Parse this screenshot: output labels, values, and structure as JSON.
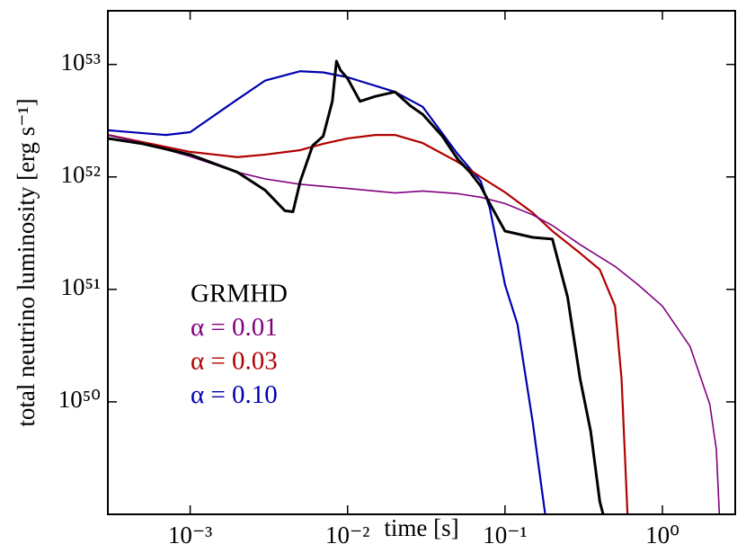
{
  "chart_data": {
    "type": "line",
    "xlabel": "time [s]",
    "ylabel": "total neutrino luminosity [erg s⁻¹]",
    "xscale": "log",
    "yscale": "log",
    "xlim": [
      0.0003,
      2.9
    ],
    "ylim": [
      1e+49,
      3e+53
    ],
    "xticks": [
      {
        "value": 0.001,
        "label": "10⁻³"
      },
      {
        "value": 0.01,
        "label": "10⁻²"
      },
      {
        "value": 0.1,
        "label": "10⁻¹"
      },
      {
        "value": 1,
        "label": "10⁰"
      }
    ],
    "yticks": [
      {
        "value": 1e+50,
        "label": "10⁵⁰"
      },
      {
        "value": 1e+51,
        "label": "10⁵¹"
      },
      {
        "value": 1e+52,
        "label": "10⁵²"
      },
      {
        "value": 1e+53,
        "label": "10⁵³"
      }
    ],
    "series": [
      {
        "name": "GRMHD",
        "color": "#000000",
        "x": [
          0.0003,
          0.0005,
          0.001,
          0.002,
          0.003,
          0.004,
          0.0045,
          0.005,
          0.006,
          0.007,
          0.008,
          0.0085,
          0.009,
          0.01,
          0.012,
          0.015,
          0.02,
          0.025,
          0.03,
          0.04,
          0.05,
          0.06,
          0.07,
          0.08,
          0.1,
          0.15,
          0.2,
          0.25,
          0.3,
          0.35,
          0.4,
          0.42
        ],
        "values": [
          2.2e+52,
          1.97e+52,
          1.58e+52,
          1.1e+52,
          7.6e+51,
          5e+51,
          4.9e+51,
          9.1e+51,
          1.9e+52,
          2.3e+52,
          4.7e+52,
          1.07e+53,
          8.9e+52,
          7.5e+52,
          4.7e+52,
          5.2e+52,
          5.7e+52,
          4.3e+52,
          3.6e+52,
          2.3e+52,
          1.44e+52,
          1.1e+52,
          8.3e+51,
          5.8e+51,
          3.3e+51,
          2.9e+51,
          2.8e+51,
          8.5e+50,
          1.6e+50,
          5.5e+49,
          1.3e+49,
          1e+49
        ]
      },
      {
        "name": "α = 0.01",
        "color": "#800080",
        "x": [
          0.0003,
          0.0005,
          0.001,
          0.002,
          0.003,
          0.005,
          0.01,
          0.02,
          0.03,
          0.05,
          0.07,
          0.1,
          0.15,
          0.2,
          0.3,
          0.5,
          0.7,
          1,
          1.5,
          2,
          2.2,
          2.3
        ],
        "values": [
          2.36e+52,
          2e+52,
          1.52e+52,
          1.1e+52,
          9.6e+51,
          8.6e+51,
          7.9e+51,
          7.2e+51,
          7.5e+51,
          7.1e+51,
          6.6e+51,
          5.8e+51,
          4.6e+51,
          3.7e+51,
          2.5e+51,
          1.6e+51,
          1.1e+51,
          7.1e+50,
          3.1e+50,
          9.5e+49,
          3.8e+49,
          1e+49
        ]
      },
      {
        "name": "α = 0.03",
        "color": "#b00000",
        "x": [
          0.0003,
          0.0005,
          0.001,
          0.002,
          0.003,
          0.005,
          0.007,
          0.01,
          0.015,
          0.02,
          0.03,
          0.05,
          0.07,
          0.1,
          0.15,
          0.2,
          0.3,
          0.4,
          0.5,
          0.55,
          0.6
        ],
        "values": [
          2.36e+52,
          2.04e+52,
          1.67e+52,
          1.5e+52,
          1.58e+52,
          1.73e+52,
          1.97e+52,
          2.2e+52,
          2.36e+52,
          2.36e+52,
          2e+52,
          1.36e+52,
          1e+52,
          7.3e+51,
          4.8e+51,
          3.3e+51,
          2.1e+51,
          1.5e+51,
          7.1e+50,
          1.6e+50,
          1e+49
        ]
      },
      {
        "name": "α = 0.10",
        "color": "#0000b0",
        "x": [
          0.0003,
          0.0005,
          0.0007,
          0.001,
          0.002,
          0.003,
          0.005,
          0.007,
          0.01,
          0.02,
          0.03,
          0.05,
          0.07,
          0.08,
          0.1,
          0.12,
          0.15,
          0.17,
          0.18
        ],
        "values": [
          2.6e+52,
          2.45e+52,
          2.36e+52,
          2.5e+52,
          4.9e+52,
          7.2e+52,
          8.7e+52,
          8.5e+52,
          7.7e+52,
          5.7e+52,
          4.2e+52,
          1.6e+52,
          9.2e+51,
          5.3e+51,
          1.1e+51,
          4.9e+50,
          6.6e+49,
          1.8e+49,
          1e+49
        ]
      }
    ]
  }
}
